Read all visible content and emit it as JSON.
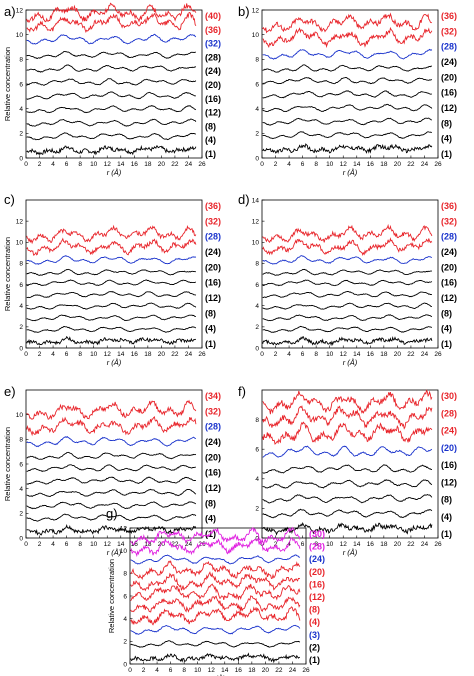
{
  "colors": {
    "black": "#000000",
    "red": "#e8252b",
    "blue": "#1a33cc",
    "magenta": "#e020e0"
  },
  "chart_data": [
    {
      "type": "line",
      "panel": "a)",
      "xlabel": "r (Å)",
      "ylabel": "Relative concentration",
      "xlim": [
        0,
        26
      ],
      "ylim": [
        0,
        12
      ],
      "xticks": [
        "0",
        "2",
        "4",
        "6",
        "8",
        "10",
        "12",
        "14",
        "16",
        "18",
        "20",
        "22",
        "24",
        "26"
      ],
      "yticks": [
        "0",
        "2",
        "4",
        "6",
        "8",
        "10",
        "12"
      ],
      "series": [
        {
          "name": "(1)",
          "color": "black",
          "offset": 0.5
        },
        {
          "name": "(4)",
          "color": "black",
          "offset": 1.6
        },
        {
          "name": "(8)",
          "color": "black",
          "offset": 2.7
        },
        {
          "name": "(12)",
          "color": "black",
          "offset": 3.8
        },
        {
          "name": "(16)",
          "color": "black",
          "offset": 4.9
        },
        {
          "name": "(20)",
          "color": "black",
          "offset": 6.0
        },
        {
          "name": "(24)",
          "color": "black",
          "offset": 7.1
        },
        {
          "name": "(28)",
          "color": "black",
          "offset": 8.2
        },
        {
          "name": "(32)",
          "color": "blue",
          "offset": 9.4
        },
        {
          "name": "(36)",
          "color": "red",
          "offset": 10.6
        },
        {
          "name": "(40)",
          "color": "red",
          "offset": 11.4
        }
      ]
    },
    {
      "type": "line",
      "panel": "b)",
      "xlabel": "r (Å)",
      "ylabel": "",
      "xlim": [
        0,
        26
      ],
      "ylim": [
        0,
        12
      ],
      "xticks": [
        "0",
        "2",
        "4",
        "6",
        "8",
        "10",
        "12",
        "14",
        "16",
        "18",
        "20",
        "22",
        "24",
        "26"
      ],
      "yticks": [
        "0",
        "2",
        "4",
        "6",
        "8",
        "10",
        "12"
      ],
      "series": [
        {
          "name": "(1)",
          "color": "black",
          "offset": 0.6
        },
        {
          "name": "(4)",
          "color": "black",
          "offset": 1.7
        },
        {
          "name": "(8)",
          "color": "black",
          "offset": 2.8
        },
        {
          "name": "(12)",
          "color": "black",
          "offset": 3.9
        },
        {
          "name": "(16)",
          "color": "black",
          "offset": 5.0
        },
        {
          "name": "(20)",
          "color": "black",
          "offset": 6.1
        },
        {
          "name": "(24)",
          "color": "black",
          "offset": 7.1
        },
        {
          "name": "(28)",
          "color": "blue",
          "offset": 8.2
        },
        {
          "name": "(32)",
          "color": "red",
          "offset": 9.4
        },
        {
          "name": "(36)",
          "color": "red",
          "offset": 10.6
        }
      ]
    },
    {
      "type": "line",
      "panel": "c)",
      "xlabel": "r (Å)",
      "ylabel": "Relative concentration",
      "xlim": [
        0,
        26
      ],
      "ylim": [
        0,
        14
      ],
      "xticks": [
        "0",
        "2",
        "4",
        "6",
        "8",
        "10",
        "12",
        "14",
        "16",
        "18",
        "20",
        "22",
        "24",
        "26"
      ],
      "yticks": [
        "0",
        "2",
        "4",
        "6",
        "8",
        "10",
        "12"
      ],
      "series": [
        {
          "name": "(1)",
          "color": "black",
          "offset": 0.5
        },
        {
          "name": "(4)",
          "color": "black",
          "offset": 1.6
        },
        {
          "name": "(8)",
          "color": "black",
          "offset": 2.7
        },
        {
          "name": "(12)",
          "color": "black",
          "offset": 3.8
        },
        {
          "name": "(16)",
          "color": "black",
          "offset": 4.9
        },
        {
          "name": "(20)",
          "color": "black",
          "offset": 6.0
        },
        {
          "name": "(24)",
          "color": "black",
          "offset": 7.0
        },
        {
          "name": "(28)",
          "color": "blue",
          "offset": 8.1
        },
        {
          "name": "(32)",
          "color": "red",
          "offset": 9.2
        },
        {
          "name": "(36)",
          "color": "red",
          "offset": 10.4
        }
      ]
    },
    {
      "type": "line",
      "panel": "d)",
      "xlabel": "r (Å)",
      "ylabel": "",
      "xlim": [
        0,
        26
      ],
      "ylim": [
        0,
        14
      ],
      "xticks": [
        "0",
        "2",
        "4",
        "6",
        "8",
        "10",
        "12",
        "14",
        "16",
        "18",
        "20",
        "22",
        "24",
        "26"
      ],
      "yticks": [
        "0",
        "2",
        "4",
        "6",
        "8",
        "10",
        "12",
        "14"
      ],
      "series": [
        {
          "name": "(1)",
          "color": "black",
          "offset": 0.5
        },
        {
          "name": "(4)",
          "color": "black",
          "offset": 1.6
        },
        {
          "name": "(8)",
          "color": "black",
          "offset": 2.7
        },
        {
          "name": "(12)",
          "color": "black",
          "offset": 3.8
        },
        {
          "name": "(16)",
          "color": "black",
          "offset": 4.9
        },
        {
          "name": "(20)",
          "color": "black",
          "offset": 6.0
        },
        {
          "name": "(24)",
          "color": "black",
          "offset": 7.0
        },
        {
          "name": "(28)",
          "color": "blue",
          "offset": 8.1
        },
        {
          "name": "(32)",
          "color": "red",
          "offset": 9.2
        },
        {
          "name": "(36)",
          "color": "red",
          "offset": 10.4
        }
      ]
    },
    {
      "type": "line",
      "panel": "e)",
      "xlabel": "r (Å)",
      "ylabel": "Relative concentration",
      "xlim": [
        0,
        26
      ],
      "ylim": [
        0,
        12
      ],
      "xticks": [
        "0",
        "2",
        "4",
        "6",
        "8",
        "10",
        "12",
        "14",
        "16",
        "18",
        "20",
        "22",
        "24",
        "26"
      ],
      "yticks": [
        "0",
        "2",
        "4",
        "6",
        "8",
        "10"
      ],
      "series": [
        {
          "name": "(1)",
          "color": "black",
          "offset": 0.5
        },
        {
          "name": "(4)",
          "color": "black",
          "offset": 1.5
        },
        {
          "name": "(8)",
          "color": "black",
          "offset": 2.5
        },
        {
          "name": "(12)",
          "color": "black",
          "offset": 3.5
        },
        {
          "name": "(16)",
          "color": "black",
          "offset": 4.5
        },
        {
          "name": "(20)",
          "color": "black",
          "offset": 5.5
        },
        {
          "name": "(24)",
          "color": "black",
          "offset": 6.5
        },
        {
          "name": "(28)",
          "color": "blue",
          "offset": 7.6
        },
        {
          "name": "(32)",
          "color": "red",
          "offset": 8.7
        },
        {
          "name": "(34)",
          "color": "red",
          "offset": 10.0
        }
      ]
    },
    {
      "type": "line",
      "panel": "f)",
      "xlabel": "r (Å)",
      "ylabel": "",
      "xlim": [
        0,
        26
      ],
      "ylim": [
        0,
        10
      ],
      "xticks": [
        "0",
        "2",
        "4",
        "6",
        "8",
        "10",
        "12",
        "14",
        "16",
        "18",
        "20",
        "22",
        "24",
        "26"
      ],
      "yticks": [
        "0",
        "2",
        "4",
        "6",
        "8"
      ],
      "series": [
        {
          "name": "(1)",
          "color": "black",
          "offset": 0.5
        },
        {
          "name": "(4)",
          "color": "black",
          "offset": 1.5
        },
        {
          "name": "(8)",
          "color": "black",
          "offset": 2.5
        },
        {
          "name": "(12)",
          "color": "black",
          "offset": 3.5
        },
        {
          "name": "(16)",
          "color": "black",
          "offset": 4.5
        },
        {
          "name": "(20)",
          "color": "blue",
          "offset": 5.6
        },
        {
          "name": "(24)",
          "color": "red",
          "offset": 6.7
        },
        {
          "name": "(28)",
          "color": "red",
          "offset": 7.8
        },
        {
          "name": "(30)",
          "color": "red",
          "offset": 8.8
        }
      ]
    },
    {
      "type": "line",
      "panel": "g)",
      "xlabel": "r (Å)",
      "ylabel": "Relative concentration",
      "xlim": [
        0,
        26
      ],
      "ylim": [
        0,
        12
      ],
      "xticks": [
        "0",
        "2",
        "4",
        "6",
        "8",
        "10",
        "12",
        "14",
        "16",
        "18",
        "20",
        "22",
        "24",
        "26"
      ],
      "yticks": [
        "0",
        "2",
        "4",
        "6",
        "8",
        "10",
        "12"
      ],
      "series": [
        {
          "name": "(1)",
          "color": "black",
          "offset": 0.4
        },
        {
          "name": "(2)",
          "color": "black",
          "offset": 1.6
        },
        {
          "name": "(3)",
          "color": "blue",
          "offset": 2.8
        },
        {
          "name": "(4)",
          "color": "red",
          "offset": 3.9
        },
        {
          "name": "(8)",
          "color": "red",
          "offset": 4.9
        },
        {
          "name": "(12)",
          "color": "red",
          "offset": 5.9
        },
        {
          "name": "(16)",
          "color": "red",
          "offset": 6.9
        },
        {
          "name": "(20)",
          "color": "red",
          "offset": 7.9
        },
        {
          "name": "(24)",
          "color": "blue",
          "offset": 9.0
        },
        {
          "name": "(28)",
          "color": "magenta",
          "offset": 10.0
        },
        {
          "name": "(30)",
          "color": "magenta",
          "offset": 10.9
        }
      ]
    }
  ]
}
